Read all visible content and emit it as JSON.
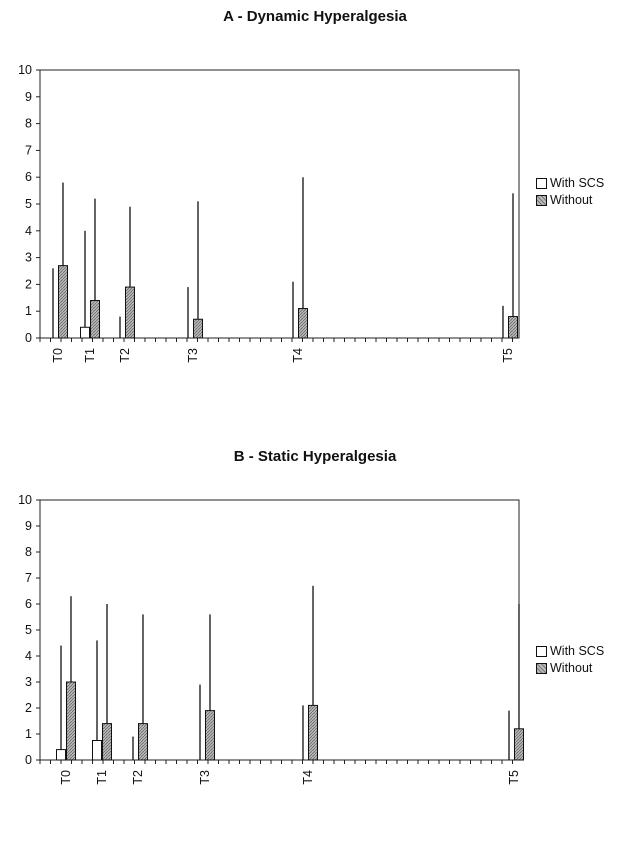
{
  "chart_data": [
    {
      "type": "bar",
      "title": "A - Dynamic Hyperalgesia",
      "categories": [
        "T0",
        "T1",
        "T2",
        "T3",
        "T4",
        "T5"
      ],
      "ylim": [
        0,
        10
      ],
      "yticks": [
        0,
        1,
        2,
        3,
        4,
        5,
        6,
        7,
        8,
        9,
        10
      ],
      "legend_position": "right",
      "series": [
        {
          "name": "With SCS",
          "values": [
            0,
            0.4,
            0,
            0,
            0,
            0
          ],
          "error_upper": [
            2.6,
            4.0,
            0.8,
            1.9,
            2.1,
            1.2
          ]
        },
        {
          "name": "Without",
          "values": [
            2.7,
            1.4,
            1.9,
            0.7,
            1.1,
            0.8
          ],
          "error_upper": [
            5.8,
            5.2,
            4.9,
            5.1,
            6.0,
            5.4
          ]
        }
      ]
    },
    {
      "type": "bar",
      "title": "B - Static Hyperalgesia",
      "categories": [
        "T0",
        "T1",
        "T2",
        "T3",
        "T4",
        "T5"
      ],
      "ylim": [
        0,
        10
      ],
      "yticks": [
        0,
        1,
        2,
        3,
        4,
        5,
        6,
        7,
        8,
        9,
        10
      ],
      "legend_position": "right",
      "series": [
        {
          "name": "With SCS",
          "values": [
            0.4,
            0.75,
            0,
            0,
            0,
            0
          ],
          "error_upper": [
            4.4,
            4.6,
            0.9,
            2.9,
            2.1,
            1.9
          ]
        },
        {
          "name": "Without",
          "values": [
            3.0,
            1.4,
            1.4,
            1.9,
            2.1,
            1.2
          ],
          "error_upper": [
            6.3,
            6.0,
            5.6,
            5.6,
            6.7,
            6.0
          ]
        }
      ]
    }
  ],
  "colors": {
    "with_scs": "#ffffff",
    "without_fill": "#bbbbbb",
    "outline": "#111111"
  }
}
